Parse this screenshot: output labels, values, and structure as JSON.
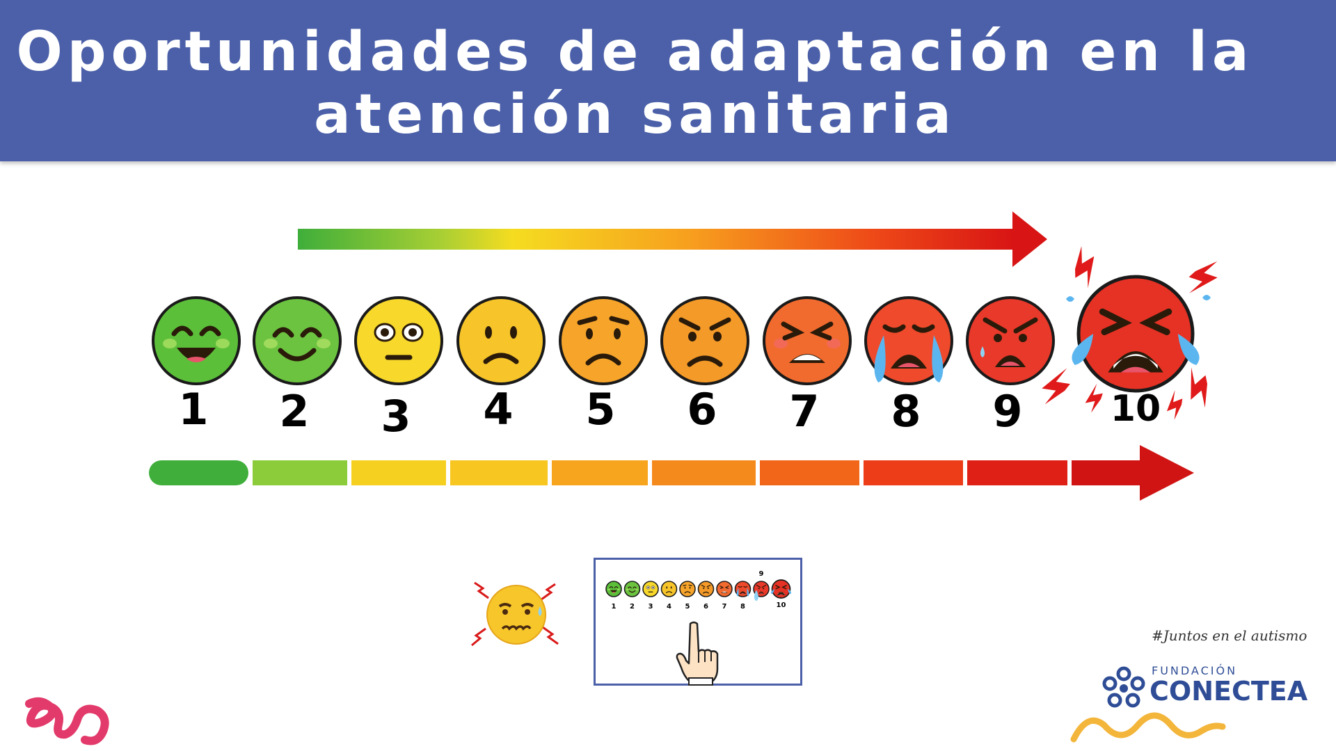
{
  "header": {
    "title_line1": "Oportunidades de adaptación en la",
    "title_line2": "atención sanitaria",
    "background": "#4b60a8"
  },
  "scale": {
    "min": 1,
    "max": 10,
    "labels": [
      "1",
      "2",
      "3",
      "4",
      "5",
      "6",
      "7",
      "8",
      "9",
      "10"
    ],
    "face_colors": [
      "#5cbf3a",
      "#6cc340",
      "#f7d82b",
      "#f7c52a",
      "#f7a52a",
      "#f49a28",
      "#f26b2e",
      "#ee4a2b",
      "#e8392a",
      "#e53224"
    ],
    "faces": [
      "big-smile",
      "smile",
      "neutral",
      "slight-frown",
      "worried",
      "angry",
      "grimace",
      "crying",
      "very-angry",
      "screaming-crying"
    ],
    "bar_colors": [
      "#3fae3a",
      "#8ccc3a",
      "#f5d020",
      "#f7c620",
      "#f7a51e",
      "#f58a1c",
      "#f2661a",
      "#ec3d18",
      "#de2016",
      "#d01414"
    ],
    "arrow_colors": [
      "#3fae3a",
      "#f5dc20",
      "#f79e1e",
      "#ee4a18",
      "#d81414"
    ]
  },
  "mini_card": {
    "labels": [
      "1",
      "2",
      "3",
      "4",
      "5",
      "6",
      "7",
      "8",
      "9",
      "10"
    ],
    "pointer_icon": "pointing-hand-icon"
  },
  "anxious_icon": "anxious-face-icon",
  "branding": {
    "signature": "#Juntos en el autismo",
    "foundation_label": "FUNDACIÓN",
    "foundation_name": "CONECTEA",
    "flower_color": "#2f4d96",
    "wave_color": "#f3b53a",
    "eo_logo_color": "#e23a6a"
  }
}
